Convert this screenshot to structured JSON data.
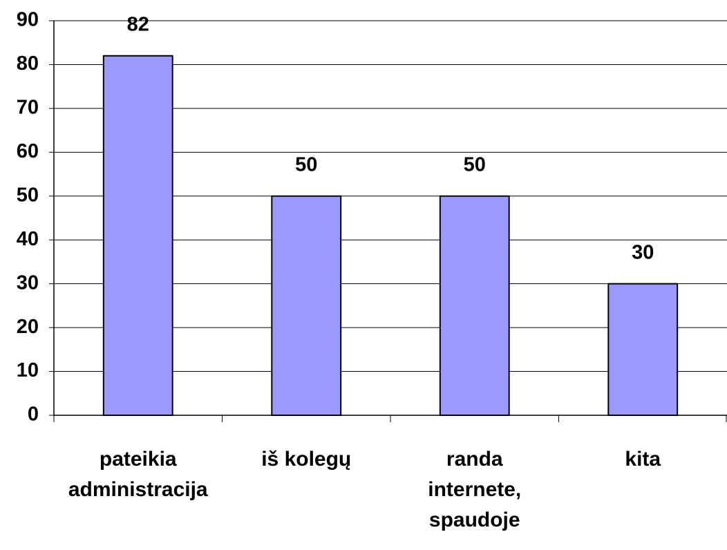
{
  "chart_data": {
    "type": "bar",
    "categories": [
      "pateikia\nadministracija",
      "iš kolegų",
      "randa\ninternete,\nspaudoje",
      "kita"
    ],
    "values": [
      82,
      50,
      50,
      30
    ],
    "color": "#9999ff",
    "ylim": [
      0,
      90
    ],
    "yticks": [
      0,
      10,
      20,
      30,
      40,
      50,
      60,
      70,
      80,
      90
    ],
    "grid": true
  }
}
